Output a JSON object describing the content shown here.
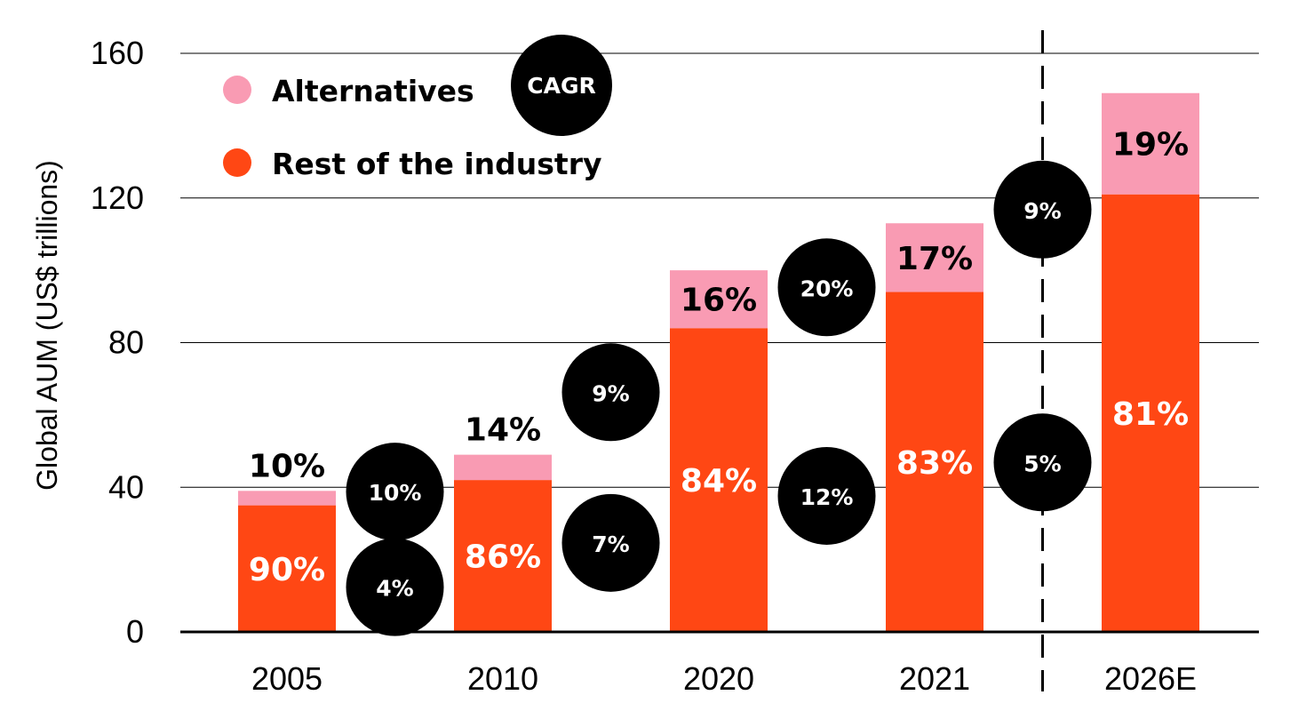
{
  "chart_data": {
    "type": "bar",
    "stacked": true,
    "ylabel": "Global AUM (US$ trillions)",
    "ylim": [
      0,
      160
    ],
    "yticks": [
      0,
      40,
      80,
      120,
      160
    ],
    "grid": true,
    "legend_position": "top-left",
    "categories": [
      "2005",
      "2010",
      "2020",
      "2021",
      "2026E"
    ],
    "series": [
      {
        "name": "Rest of the industry",
        "color": "#FF4714",
        "values": [
          35,
          42,
          84,
          94,
          121
        ],
        "labels": [
          "90%",
          "86%",
          "84%",
          "83%",
          "81%"
        ]
      },
      {
        "name": "Alternatives",
        "color": "#F99BB3",
        "values": [
          4,
          7,
          16,
          19,
          28
        ],
        "labels": [
          "10%",
          "14%",
          "16%",
          "17%",
          "19%"
        ]
      }
    ],
    "forecast_divider_after": "2021",
    "cagr_title": "CAGR",
    "cagr": [
      {
        "between": [
          "2005",
          "2010"
        ],
        "alternatives": "10%",
        "rest": "4%"
      },
      {
        "between": [
          "2010",
          "2020"
        ],
        "alternatives": "9%",
        "rest": "7%"
      },
      {
        "between": [
          "2020",
          "2021"
        ],
        "alternatives": "20%",
        "rest": "12%"
      },
      {
        "between": [
          "2021",
          "2026E"
        ],
        "alternatives": "9%",
        "rest": "5%"
      }
    ]
  }
}
